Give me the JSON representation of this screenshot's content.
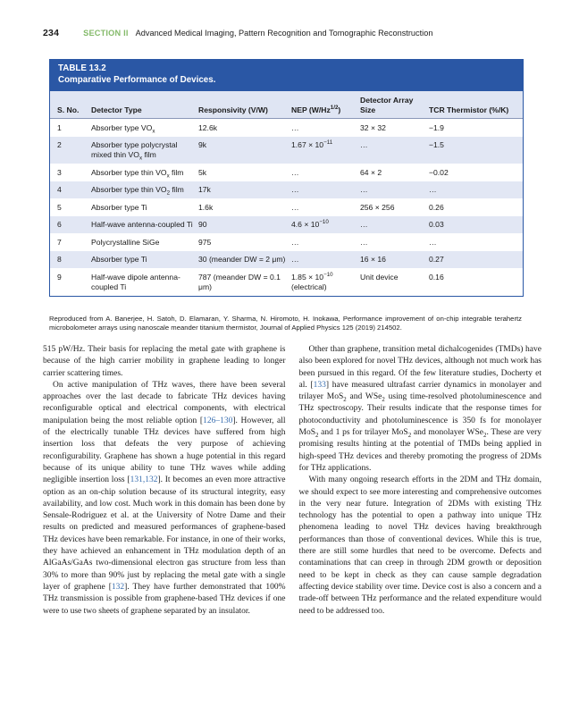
{
  "colors": {
    "accent_blue": "#2a57a5",
    "header_fill": "#dfe5f3",
    "row_stripe": "#e2e7f4",
    "link_blue": "#3a6fb0",
    "section_green": "#84ba6a",
    "text": "#1a1a1a"
  },
  "header": {
    "page_number": "234",
    "section_label": "SECTION II",
    "section_title": "Advanced Medical Imaging, Pattern Recognition and Tomographic Reconstruction"
  },
  "table": {
    "label": "TABLE 13.2",
    "title": "Comparative Performance of Devices.",
    "columns": [
      "S. No.",
      "Detector Type",
      "Responsivity (V/W)",
      "NEP (W/Hz^{1/2})",
      "Detector Array Size",
      "TCR Thermistor (%/K)"
    ],
    "rows": [
      [
        "1",
        "Absorber type VO_{x}",
        "12.6k",
        "…",
        "32 × 32",
        "−1.9"
      ],
      [
        "2",
        "Absorber type polycrystal mixed thin VO_{x} film",
        "9k",
        "1.67 × 10^{−11}",
        "…",
        "−1.5"
      ],
      [
        "3",
        "Absorber type thin VO_{x} film",
        "5k",
        "…",
        "64 × 2",
        "−0.02"
      ],
      [
        "4",
        "Absorber type thin VO_{2} film",
        "17k",
        "…",
        "…",
        "…"
      ],
      [
        "5",
        "Absorber type Ti",
        "1.6k",
        "…",
        "256 × 256",
        "0.26"
      ],
      [
        "6",
        "Half-wave antenna-coupled Ti",
        "90",
        "4.6 × 10^{−10}",
        "…",
        "0.03"
      ],
      [
        "7",
        "Polycrystalline SiGe",
        "975",
        "…",
        "…",
        "…"
      ],
      [
        "8",
        "Absorber type Ti",
        "30 (meander DW = 2 μm)",
        "…",
        "16 × 16",
        "0.27"
      ],
      [
        "9",
        "Half-wave dipole antenna-coupled Ti",
        "787 (meander DW = 0.1 μm)",
        "1.85 × 10^{−10} (electrical)",
        "Unit device",
        "0.16"
      ]
    ],
    "source": "Reproduced from A. Banerjee, H. Satoh, D. Elamaran, Y. Sharma, N. Hiromoto, H. Inokawa, Performance improvement of on-chip integrable terahertz microbolometer arrays using nanoscale meander titanium thermistor, Journal of Applied Physics 125 (2019) 214502."
  },
  "body": {
    "left": [
      "515 pW/Hz. Their basis for replacing the metal gate with graphene is because of the high carrier mobility in graphene leading to longer carrier scattering times.",
      "On active manipulation of THz waves, there have been several approaches over the last decade to fabricate THz devices having reconfigurable optical and electrical components, with electrical manipulation being the most reliable option [[126–130]]. However, all of the electrically tunable THz devices have suffered from high insertion loss that defeats the very purpose of achieving reconfigurability. Graphene has shown a huge potential in this regard because of its unique ability to tune THz waves while adding negligible insertion loss [[131,132]]. It becomes an even more attractive option as an on-chip solution because of its structural integrity, easy availability, and low cost. Much work in this domain has been done by Sensale-Rodriguez et al. at the University of Notre Dame and their results on predicted and measured performances of graphene-based THz devices have been remarkable. For instance, in one of their works, they have achieved an enhancement in THz modulation depth of an AlGaAs/GaAs two-dimensional electron gas structure from less than 30% to more than 90% just by replacing the metal gate with a single layer of graphene [[132]]. They have further demonstrated that 100% THz transmission is possible from graphene-based THz devices if one were to use two sheets of graphene separated by an insulator."
    ],
    "right": [
      "Other than graphene, transition metal dichalcogenides (TMDs) have also been explored for novel THz devices, although not much work has been pursued in this regard. Of the few literature studies, Docherty et al. [[133]] have measured ultrafast carrier dynamics in monolayer and trilayer MoS_{2} and WSe_{2} using time-resolved photoluminescence and THz spectroscopy. Their results indicate that the response times for photoconductivity and photoluminescence is 350 fs for monolayer MoS_{2} and 1 ps for trilayer MoS_{2} and monolayer WSe_{2}. These are very promising results hinting at the potential of TMDs being applied in high-speed THz devices and thereby promoting the progress of 2DMs for THz applications.",
      "With many ongoing research efforts in the 2DM and THz domain, we should expect to see more interesting and comprehensive outcomes in the very near future. Integration of 2DMs with existing THz technology has the potential to open a pathway into unique THz phenomena leading to novel THz devices having breakthrough performances than those of conventional devices. While this is true, there are still some hurdles that need to be overcome. Defects and contaminations that can creep in through 2DM growth or deposition need to be kept in check as they can cause sample degradation affecting device stability over time. Device cost is also a concern and a trade-off between THz performance and the related expenditure would need to be addressed too."
    ]
  }
}
